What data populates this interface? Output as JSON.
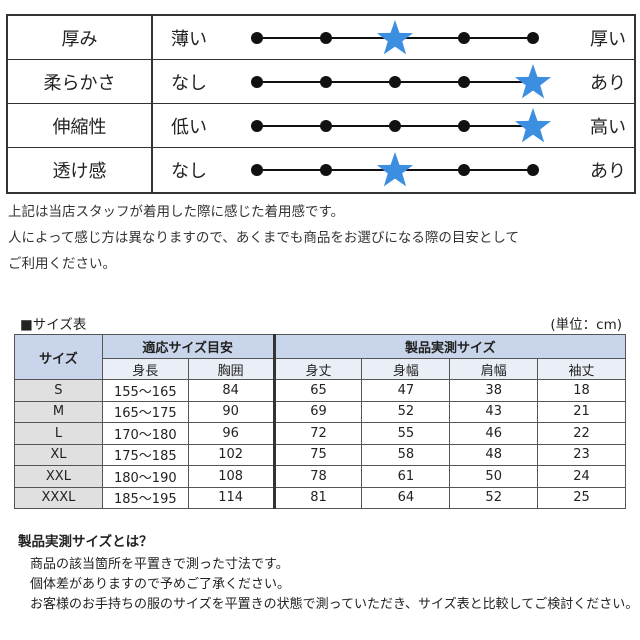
{
  "feel": [
    {
      "name": "厚み",
      "low": "薄い",
      "high": "厚い",
      "level": 3
    },
    {
      "name": "柔らかさ",
      "low": "なし",
      "high": "あり",
      "level": 5
    },
    {
      "name": "伸縮性",
      "low": "低い",
      "high": "高い",
      "level": 5
    },
    {
      "name": "透け感",
      "low": "なし",
      "high": "あり",
      "level": 3
    }
  ],
  "note": [
    "上記は当店スタッフが着用した際に感じた着用感です。",
    "人によって感じ方は異なりますので、あくまでも商品をお選びになる際の目安として",
    "ご利用ください。"
  ],
  "size_table": {
    "title": "■サイズ表",
    "unit": "(単位：cm)",
    "size_header": "サイズ",
    "group1": "適応サイズ目安",
    "group2": "製品実測サイズ",
    "columns": [
      "身長",
      "胸囲",
      "身丈",
      "身幅",
      "肩幅",
      "袖丈"
    ],
    "rows": [
      [
        "S",
        "155～165",
        "84",
        "65",
        "47",
        "38",
        "18"
      ],
      [
        "M",
        "165～175",
        "90",
        "69",
        "52",
        "43",
        "21"
      ],
      [
        "L",
        "170～180",
        "96",
        "72",
        "55",
        "46",
        "22"
      ],
      [
        "XL",
        "175～185",
        "102",
        "75",
        "58",
        "48",
        "23"
      ],
      [
        "XXL",
        "180～190",
        "108",
        "78",
        "61",
        "50",
        "24"
      ],
      [
        "XXXL",
        "185～195",
        "114",
        "81",
        "64",
        "52",
        "25"
      ]
    ]
  },
  "explain": {
    "title": "製品実測サイズとは？",
    "lines": [
      "商品の該当箇所を平置きで測った寸法です。",
      "個体差がありますので予めご了承ください。",
      "お客様のお手持ちの服のサイズを平置きの状態で測っていただき、サイズ表と比較してご検討ください。"
    ]
  },
  "colors": {
    "star": "#3c8ee0",
    "header": "#c9d5ea",
    "subheader": "#e9eef7",
    "size_cell": "#e0e0e0"
  }
}
